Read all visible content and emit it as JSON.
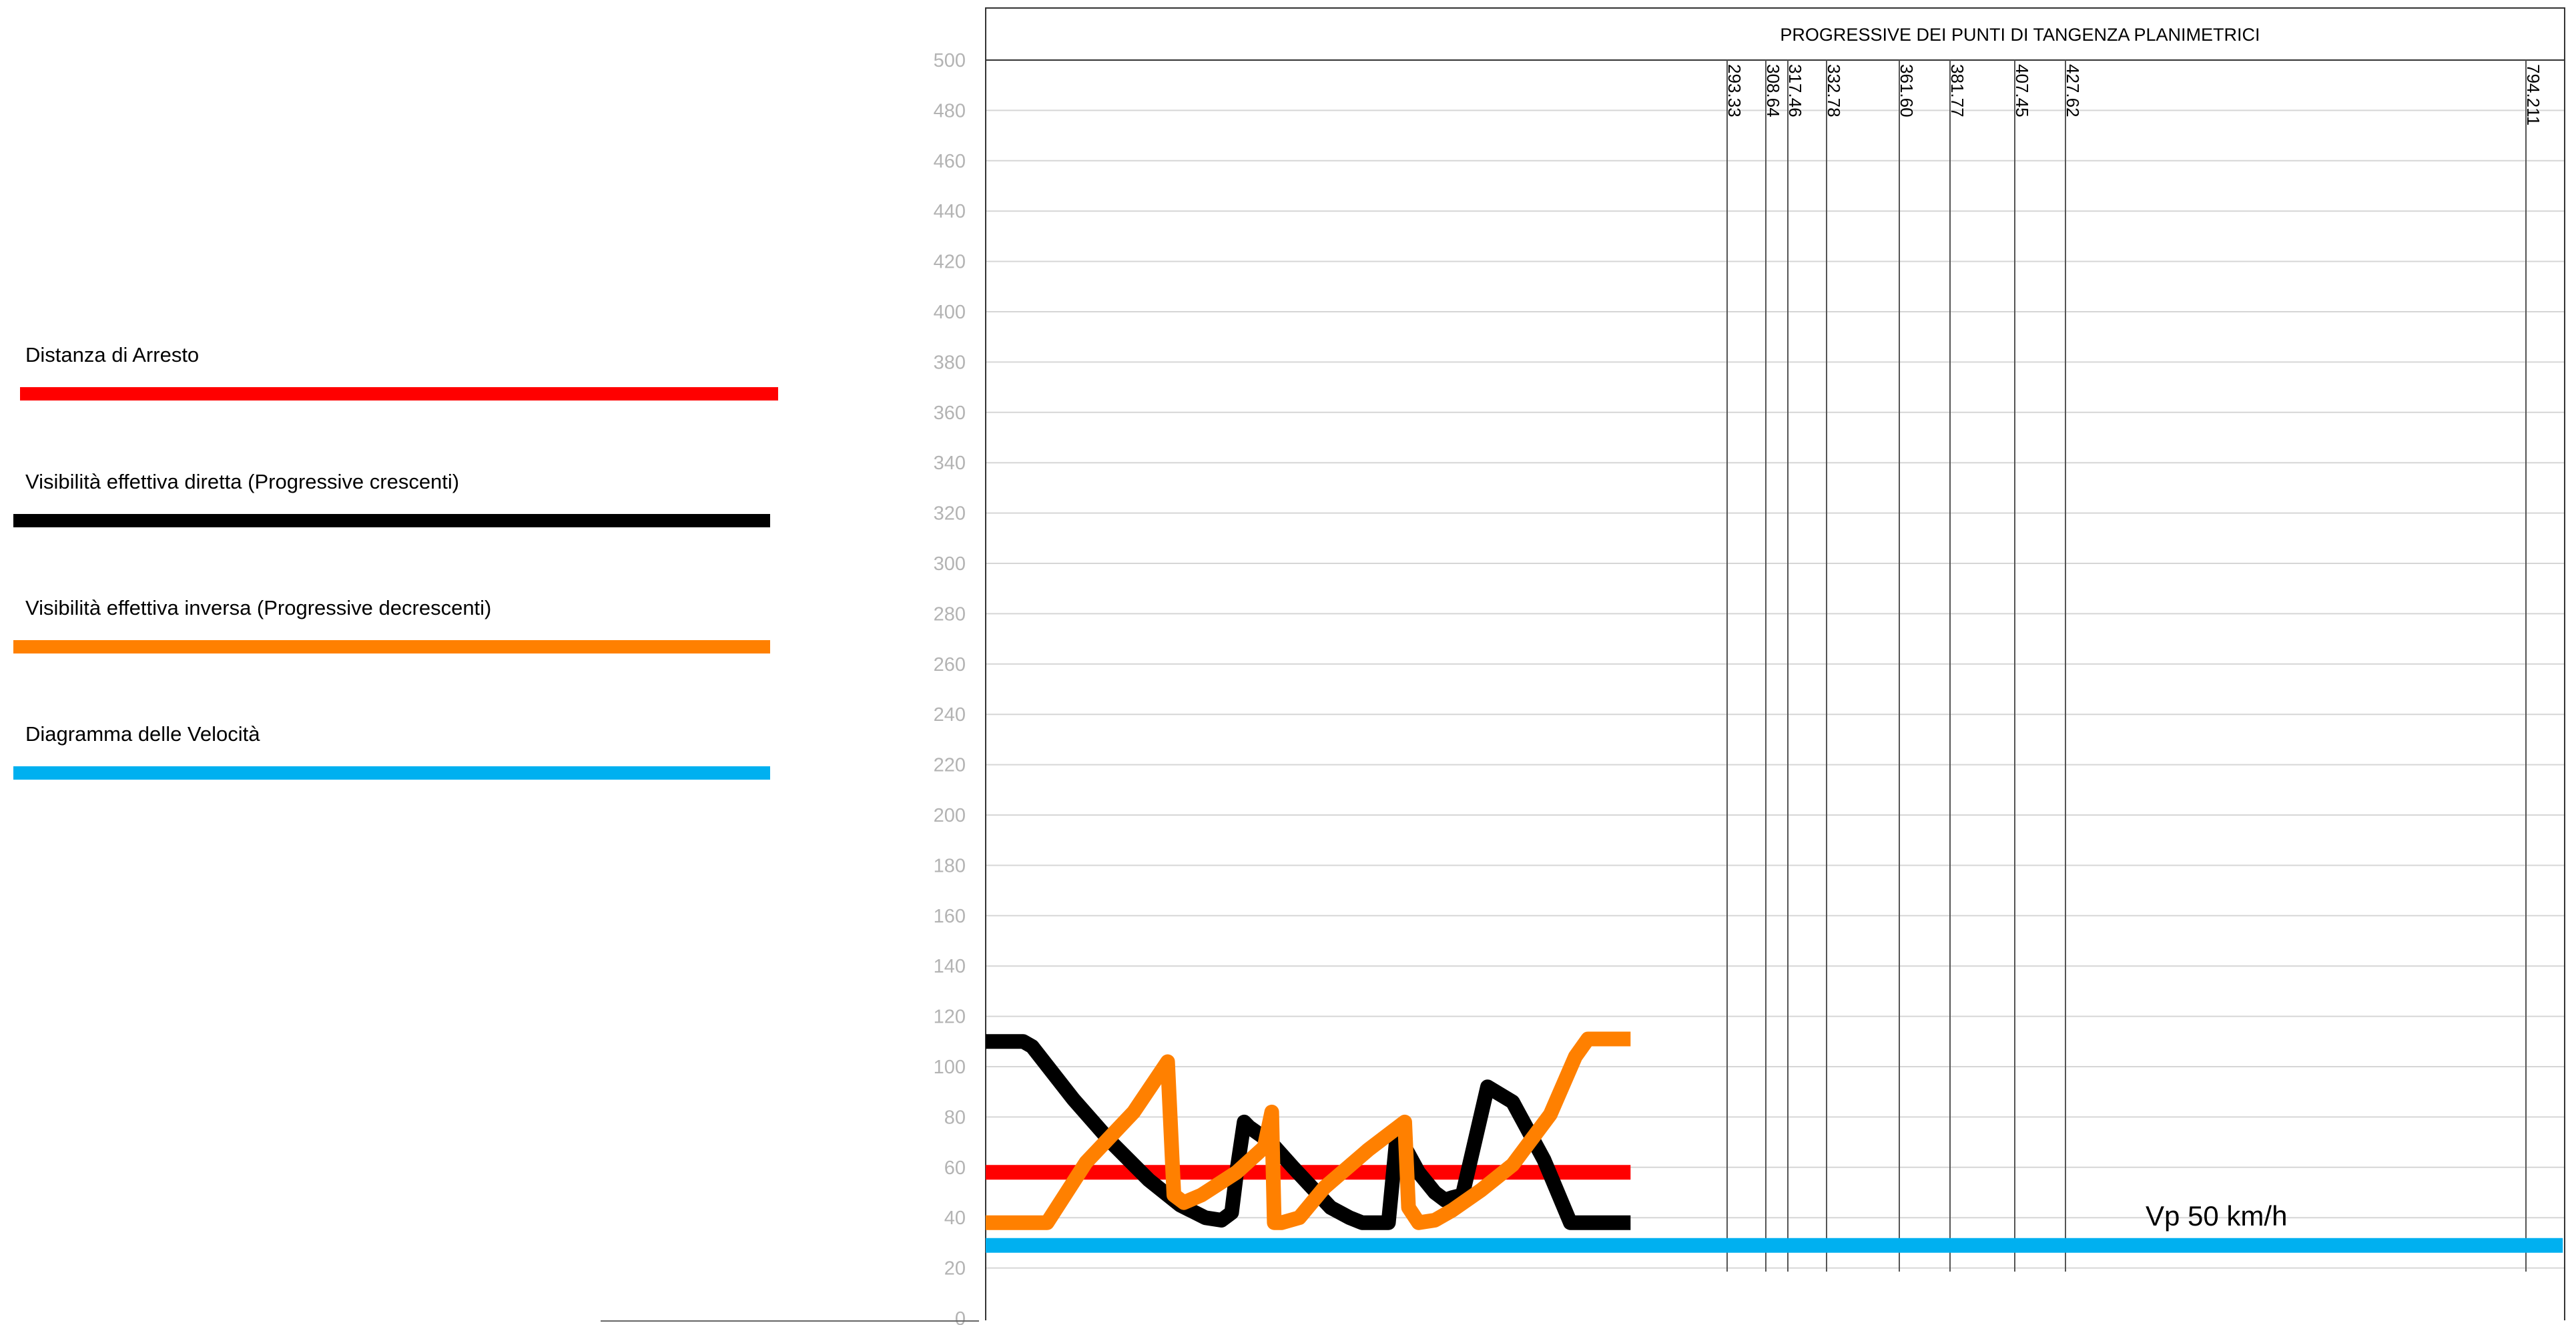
{
  "chart_data": {
    "type": "line",
    "title": "PROGRESSIVE DEI PUNTI DI TANGENZA PLANIMETRICI",
    "ylim": [
      0,
      500
    ],
    "y_ticks": [
      0,
      20,
      40,
      60,
      80,
      100,
      120,
      140,
      160,
      180,
      200,
      220,
      240,
      260,
      280,
      300,
      320,
      340,
      360,
      380,
      400,
      420,
      440,
      460,
      480,
      500
    ],
    "grid": true,
    "legend_position": "left",
    "tangent_points": [
      "293.33",
      "308.64",
      "317.46",
      "332.78",
      "361.60",
      "381.77",
      "407.45",
      "427.62",
      "794.211"
    ],
    "annotation": "Vp 50 km/h",
    "series": [
      {
        "name": "Distanza di Arresto",
        "color": "#ff0000",
        "x": [
          0,
          514
        ],
        "y": [
          58,
          58
        ]
      },
      {
        "name": "Visibilità effettiva diretta (Progressive crescenti)",
        "color": "#000000",
        "x": [
          0,
          30,
          37,
          70,
          100,
          130,
          155,
          175,
          188,
          196,
          200,
          206,
          210,
          227,
          245,
          260,
          275,
          290,
          300,
          312,
          321,
          328,
          333,
          345,
          358,
          366,
          372,
          380,
          400,
          420,
          445,
          466,
          485,
          514
        ],
        "y": [
          110,
          110,
          108,
          87,
          70,
          55,
          45,
          40,
          39,
          42,
          58,
          78,
          76,
          70,
          60,
          52,
          44,
          40,
          38,
          38,
          38,
          74,
          69,
          58,
          50,
          47,
          48,
          49,
          92,
          86,
          63,
          38,
          38,
          38
        ]
      },
      {
        "name": "Visibilità effettiva inversa (Progressive decrescenti)",
        "color": "#ff8000",
        "x": [
          0,
          49,
          80,
          118,
          145,
          150,
          158,
          172,
          200,
          222,
          228,
          230,
          236,
          250,
          270,
          305,
          334,
          337,
          345,
          358,
          372,
          395,
          420,
          450,
          470,
          480,
          487,
          514
        ],
        "y": [
          38,
          38,
          62,
          82,
          102,
          49,
          46,
          49,
          58,
          68,
          82,
          38,
          38,
          40,
          52,
          67,
          78,
          44,
          38,
          39,
          43,
          51,
          61,
          81,
          104,
          111,
          111,
          111
        ]
      },
      {
        "name": "Diagramma delle Velocità",
        "color": "#00b0f0",
        "x": [
          0,
          1257
        ],
        "y": [
          29,
          29
        ]
      }
    ]
  }
}
